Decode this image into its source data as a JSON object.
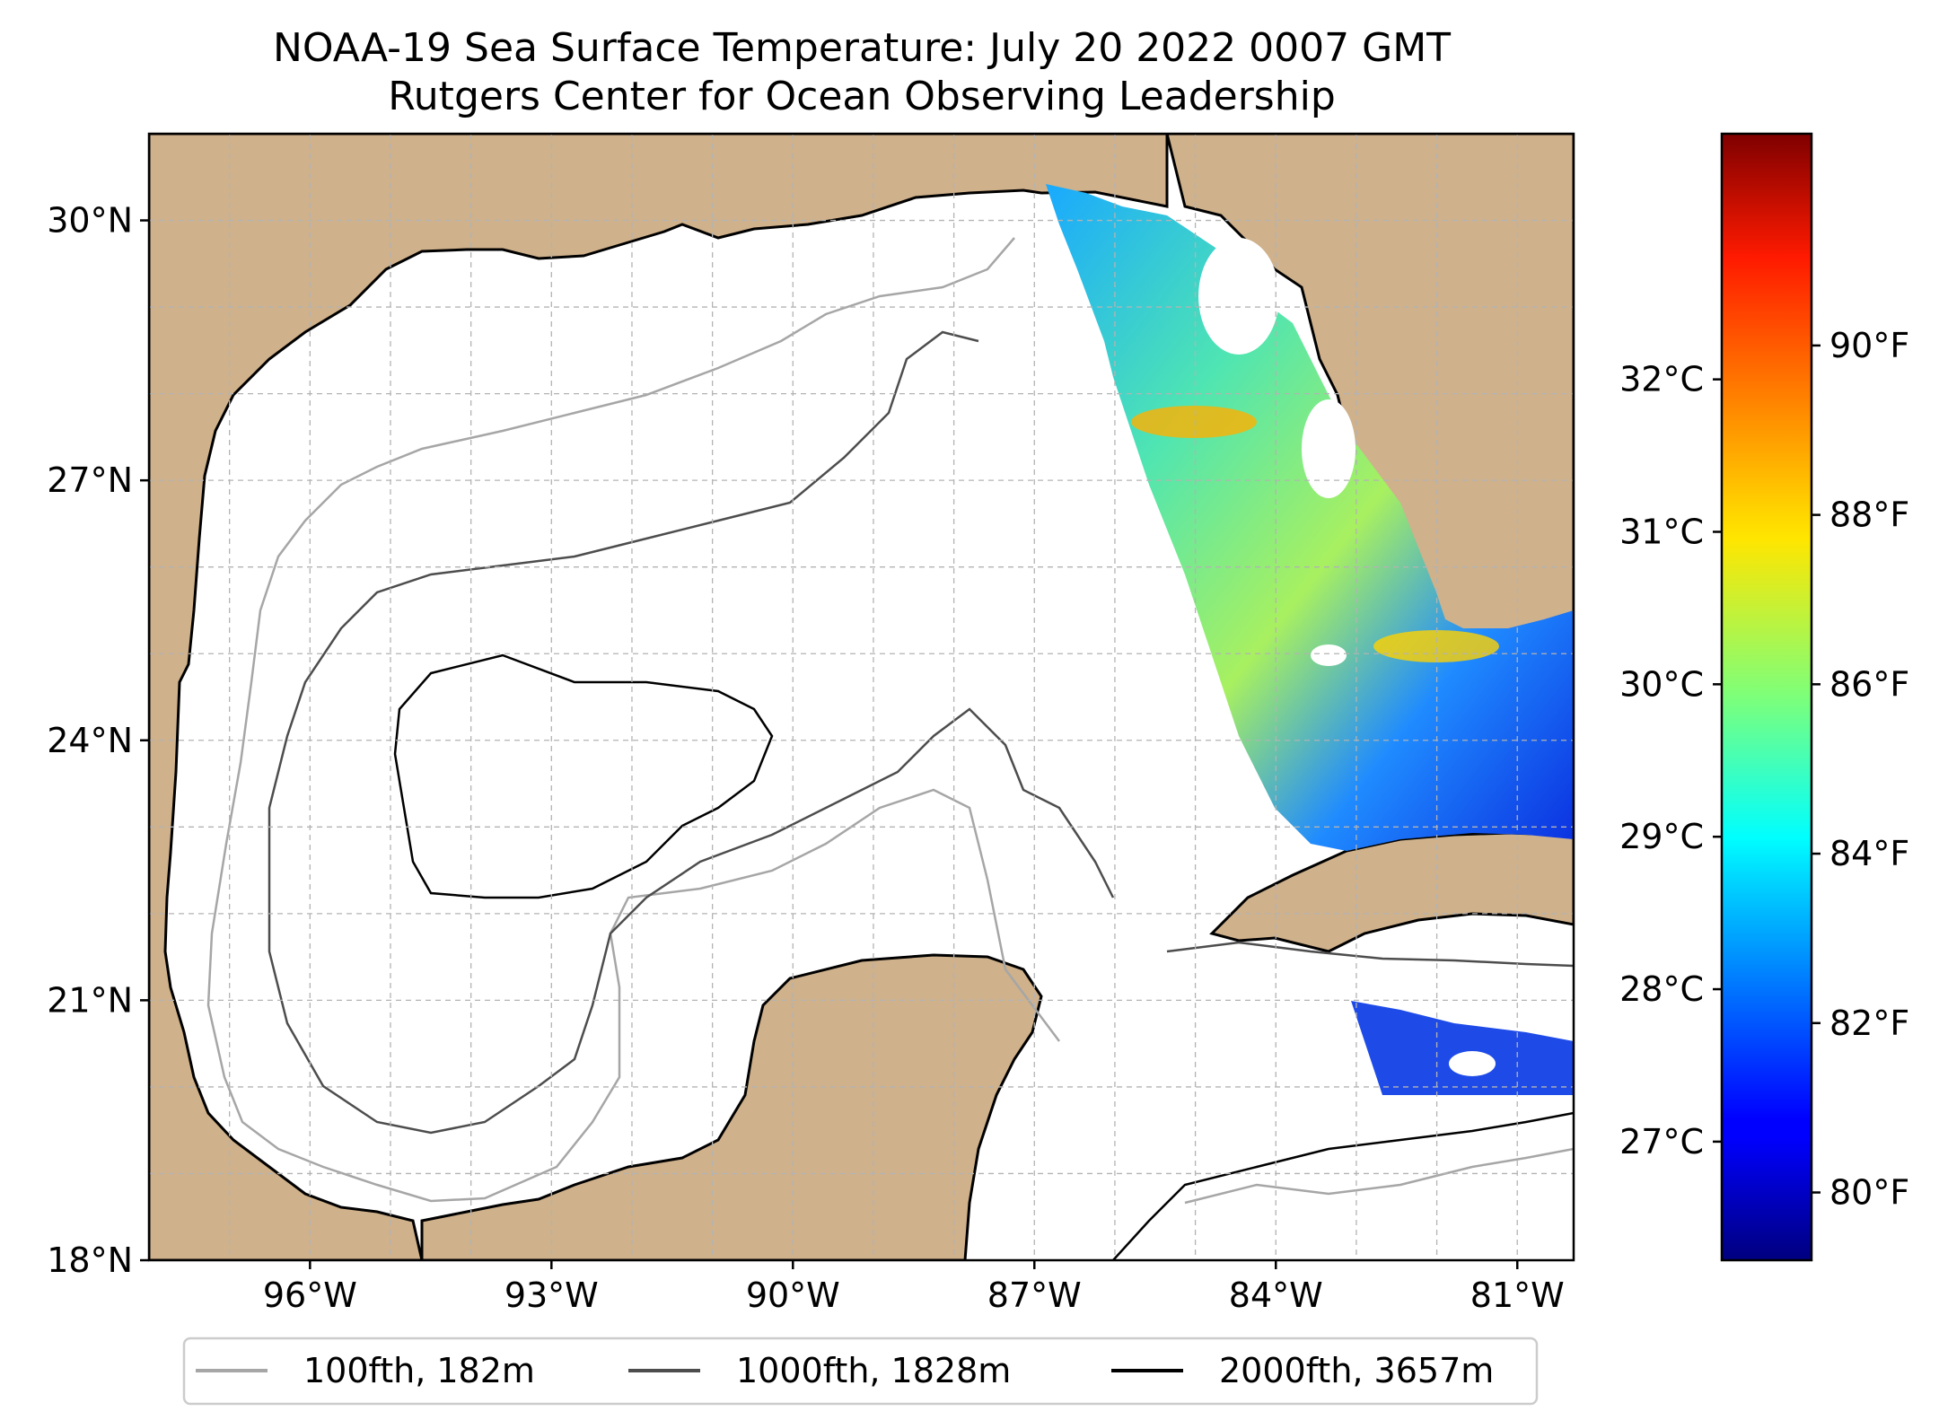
{
  "title": {
    "line1": "NOAA-19 Sea Surface Temperature: July 20 2022 0007 GMT",
    "line2": "Rutgers Center for Ocean Observing Leadership"
  },
  "map": {
    "lon_range": [
      -98,
      -80.3
    ],
    "lat_range": [
      18,
      31
    ],
    "lat_ticks": [
      {
        "value": 30,
        "label": "30°N"
      },
      {
        "value": 27,
        "label": "27°N"
      },
      {
        "value": 24,
        "label": "24°N"
      },
      {
        "value": 21,
        "label": "21°N"
      },
      {
        "value": 18,
        "label": "18°N"
      }
    ],
    "lon_ticks": [
      {
        "value": -96,
        "label": "96°W"
      },
      {
        "value": -93,
        "label": "93°W"
      },
      {
        "value": -90,
        "label": "90°W"
      },
      {
        "value": -87,
        "label": "87°W"
      },
      {
        "value": -84,
        "label": "84°W"
      },
      {
        "value": -81,
        "label": "81°W"
      }
    ],
    "colors": {
      "land": "#cfb18b",
      "lakes": "#9cb9e0",
      "grid": "#b3b3b3"
    }
  },
  "colorbar": {
    "celsius_ticks": [
      {
        "value": 32,
        "label": "32°C"
      },
      {
        "value": 31,
        "label": "31°C"
      },
      {
        "value": 30,
        "label": "30°C"
      },
      {
        "value": 29,
        "label": "29°C"
      },
      {
        "value": 28,
        "label": "28°C"
      },
      {
        "value": 27,
        "label": "27°C"
      }
    ],
    "fahrenheit_ticks": [
      {
        "value": 90,
        "label": "90°F"
      },
      {
        "value": 88,
        "label": "88°F"
      },
      {
        "value": 86,
        "label": "86°F"
      },
      {
        "value": 84,
        "label": "84°F"
      },
      {
        "value": 82,
        "label": "82°F"
      },
      {
        "value": 80,
        "label": "80°F"
      }
    ],
    "range_f": [
      79.2,
      92.5
    ],
    "colormap": "jet"
  },
  "legend": {
    "items": [
      {
        "label": "100fth, 182m",
        "color": "#a6a6a6"
      },
      {
        "label": "1000fth, 1828m",
        "color": "#4d4d4d"
      },
      {
        "label": "2000fth, 3657m",
        "color": "#000000"
      }
    ]
  }
}
